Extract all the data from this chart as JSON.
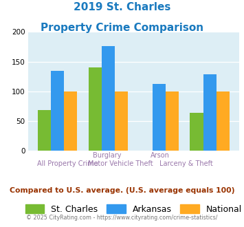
{
  "title_line1": "2019 St. Charles",
  "title_line2": "Property Crime Comparison",
  "title_color": "#1a7abf",
  "st_charles": [
    69,
    140,
    0,
    64
  ],
  "arkansas": [
    135,
    176,
    112,
    129
  ],
  "national": [
    100,
    100,
    100,
    100
  ],
  "bar_colors": {
    "st_charles": "#77bb33",
    "arkansas": "#3399ee",
    "national": "#ffaa22"
  },
  "ylim": [
    0,
    200
  ],
  "yticks": [
    0,
    50,
    100,
    150,
    200
  ],
  "plot_bg": "#ddeef5",
  "legend_labels": [
    "St. Charles",
    "Arkansas",
    "National"
  ],
  "subtitle": "Compared to U.S. average. (U.S. average equals 100)",
  "subtitle_color": "#993300",
  "footer": "© 2025 CityRating.com - https://www.cityrating.com/crime-statistics/",
  "footer_color": "#777777",
  "xlabel_color": "#9977aa",
  "x_positions": [
    0,
    1,
    2,
    3
  ],
  "label_row1": [
    "",
    "Burglary",
    "Arson",
    ""
  ],
  "label_row2": [
    "All Property Crime",
    "Motor Vehicle Theft",
    "",
    "Larceny & Theft"
  ]
}
